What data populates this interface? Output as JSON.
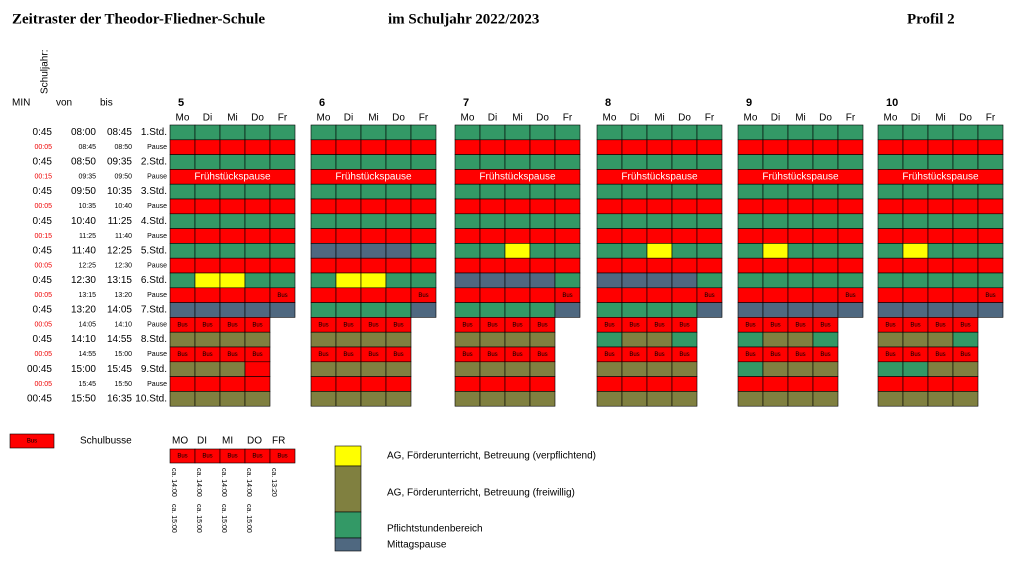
{
  "header": {
    "title": "Zeitraster der Theodor-Fliedner-Schule",
    "year": "im Schuljahr 2022/2023",
    "profile": "Profil 2",
    "schuljahr": "Schuljahr:",
    "min": "MIN",
    "from": "von",
    "to": "bis"
  },
  "days": [
    "Mo",
    "Di",
    "Mi",
    "Do",
    "Fr"
  ],
  "palette": {
    "g": "#339966",
    "r": "#ff0000",
    "y": "#ffff00",
    "o": "#808040",
    "m": "#4f6880"
  },
  "times": [
    [
      "0:45",
      "08:00",
      "08:45",
      "1.Std."
    ],
    [
      "00:05",
      "08:45",
      "08:50",
      "Pause"
    ],
    [
      "0:45",
      "08:50",
      "09:35",
      "2.Std."
    ],
    [
      "00:15",
      "09:35",
      "09:50",
      "Pause"
    ],
    [
      "0:45",
      "09:50",
      "10:35",
      "3.Std."
    ],
    [
      "00:05",
      "10:35",
      "10:40",
      "Pause"
    ],
    [
      "0:45",
      "10:40",
      "11:25",
      "4.Std."
    ],
    [
      "00:15",
      "11:25",
      "11:40",
      "Pause"
    ],
    [
      "0:45",
      "11:40",
      "12:25",
      "5.Std."
    ],
    [
      "00:05",
      "12:25",
      "12:30",
      "Pause"
    ],
    [
      "0:45",
      "12:30",
      "13:15",
      "6.Std."
    ],
    [
      "00:05",
      "13:15",
      "13:20",
      "Pause"
    ],
    [
      "0:45",
      "13:20",
      "14:05",
      "7.Std."
    ],
    [
      "00:05",
      "14:05",
      "14:10",
      "Pause"
    ],
    [
      "0:45",
      "14:10",
      "14:55",
      "8.Std."
    ],
    [
      "00:05",
      "14:55",
      "15:00",
      "Pause"
    ],
    [
      "00:45",
      "15:00",
      "15:45",
      "9.Std."
    ],
    [
      "00:05",
      "15:45",
      "15:50",
      "Pause"
    ],
    [
      "00:45",
      "15:50",
      "16:35",
      "10.Std."
    ]
  ],
  "grades": [
    {
      "name": "5",
      "rows": [
        [
          "g",
          "g",
          "g",
          "g",
          "g"
        ],
        [
          "r",
          "r",
          "r",
          "r",
          "r"
        ],
        [
          "g",
          "g",
          "g",
          "g",
          "g"
        ],
        "Frühstückspause",
        [
          "g",
          "g",
          "g",
          "g",
          "g"
        ],
        [
          "r",
          "r",
          "r",
          "r",
          "r"
        ],
        [
          "g",
          "g",
          "g",
          "g",
          "g"
        ],
        [
          "r",
          "r",
          "r",
          "r",
          "r"
        ],
        [
          "g",
          "g",
          "g",
          "g",
          "g"
        ],
        [
          "r",
          "r",
          "r",
          "r",
          "r"
        ],
        [
          "g",
          "y",
          "y",
          "g",
          "g"
        ],
        [
          "r",
          "r",
          "r",
          "r",
          "Bus"
        ],
        [
          "m",
          "m",
          "m",
          "m",
          "m"
        ],
        [
          "Bus",
          "Bus",
          "Bus",
          "Bus",
          null
        ],
        [
          "o",
          "o",
          "o",
          "o",
          null
        ],
        [
          "Bus",
          "Bus",
          "Bus",
          "Bus",
          null
        ],
        [
          "o",
          "o",
          "o",
          "r",
          null
        ],
        [
          "r",
          "r",
          "r",
          "r",
          null
        ],
        [
          "o",
          "o",
          "o",
          "o",
          null
        ]
      ]
    },
    {
      "name": "6",
      "rows": [
        [
          "g",
          "g",
          "g",
          "g",
          "g"
        ],
        [
          "r",
          "r",
          "r",
          "r",
          "r"
        ],
        [
          "g",
          "g",
          "g",
          "g",
          "g"
        ],
        "Frühstückspause",
        [
          "g",
          "g",
          "g",
          "g",
          "g"
        ],
        [
          "r",
          "r",
          "r",
          "r",
          "r"
        ],
        [
          "g",
          "g",
          "g",
          "g",
          "g"
        ],
        [
          "r",
          "r",
          "r",
          "r",
          "r"
        ],
        [
          "m",
          "m",
          "m",
          "m",
          "g"
        ],
        [
          "r",
          "r",
          "r",
          "r",
          "r"
        ],
        [
          "g",
          "y",
          "y",
          "g",
          "g"
        ],
        [
          "r",
          "r",
          "r",
          "r",
          "Bus"
        ],
        [
          "g",
          "g",
          "g",
          "g",
          "m"
        ],
        [
          "Bus",
          "Bus",
          "Bus",
          "Bus",
          null
        ],
        [
          "o",
          "o",
          "o",
          "o",
          null
        ],
        [
          "Bus",
          "Bus",
          "Bus",
          "Bus",
          null
        ],
        [
          "o",
          "o",
          "o",
          "o",
          null
        ],
        [
          "r",
          "r",
          "r",
          "r",
          null
        ],
        [
          "o",
          "o",
          "o",
          "o",
          null
        ]
      ]
    },
    {
      "name": "7",
      "rows": [
        [
          "g",
          "g",
          "g",
          "g",
          "g"
        ],
        [
          "r",
          "r",
          "r",
          "r",
          "r"
        ],
        [
          "g",
          "g",
          "g",
          "g",
          "g"
        ],
        "Frühstückspause",
        [
          "g",
          "g",
          "g",
          "g",
          "g"
        ],
        [
          "r",
          "r",
          "r",
          "r",
          "r"
        ],
        [
          "g",
          "g",
          "g",
          "g",
          "g"
        ],
        [
          "r",
          "r",
          "r",
          "r",
          "r"
        ],
        [
          "g",
          "g",
          "y",
          "g",
          "g"
        ],
        [
          "r",
          "r",
          "r",
          "r",
          "r"
        ],
        [
          "m",
          "m",
          "m",
          "m",
          "g"
        ],
        [
          "r",
          "r",
          "r",
          "r",
          "Bus"
        ],
        [
          "g",
          "g",
          "g",
          "g",
          "m"
        ],
        [
          "Bus",
          "Bus",
          "Bus",
          "Bus",
          null
        ],
        [
          "o",
          "o",
          "o",
          "o",
          null
        ],
        [
          "Bus",
          "Bus",
          "Bus",
          "Bus",
          null
        ],
        [
          "o",
          "o",
          "o",
          "o",
          null
        ],
        [
          "r",
          "r",
          "r",
          "r",
          null
        ],
        [
          "o",
          "o",
          "o",
          "o",
          null
        ]
      ]
    },
    {
      "name": "8",
      "rows": [
        [
          "g",
          "g",
          "g",
          "g",
          "g"
        ],
        [
          "r",
          "r",
          "r",
          "r",
          "r"
        ],
        [
          "g",
          "g",
          "g",
          "g",
          "g"
        ],
        "Frühstückspause",
        [
          "g",
          "g",
          "g",
          "g",
          "g"
        ],
        [
          "r",
          "r",
          "r",
          "r",
          "r"
        ],
        [
          "g",
          "g",
          "g",
          "g",
          "g"
        ],
        [
          "r",
          "r",
          "r",
          "r",
          "r"
        ],
        [
          "g",
          "g",
          "y",
          "g",
          "g"
        ],
        [
          "r",
          "r",
          "r",
          "r",
          "r"
        ],
        [
          "m",
          "m",
          "m",
          "m",
          "g"
        ],
        [
          "r",
          "r",
          "r",
          "r",
          "Bus"
        ],
        [
          "g",
          "g",
          "g",
          "g",
          "m"
        ],
        [
          "Bus",
          "Bus",
          "Bus",
          "Bus",
          null
        ],
        [
          "g",
          "o",
          "o",
          "g",
          null
        ],
        [
          "Bus",
          "Bus",
          "Bus",
          "Bus",
          null
        ],
        [
          "o",
          "o",
          "o",
          "o",
          null
        ],
        [
          "r",
          "r",
          "r",
          "r",
          null
        ],
        [
          "o",
          "o",
          "o",
          "o",
          null
        ]
      ]
    },
    {
      "name": "9",
      "rows": [
        [
          "g",
          "g",
          "g",
          "g",
          "g"
        ],
        [
          "r",
          "r",
          "r",
          "r",
          "r"
        ],
        [
          "g",
          "g",
          "g",
          "g",
          "g"
        ],
        "Frühstückspause",
        [
          "g",
          "g",
          "g",
          "g",
          "g"
        ],
        [
          "r",
          "r",
          "r",
          "r",
          "r"
        ],
        [
          "g",
          "g",
          "g",
          "g",
          "g"
        ],
        [
          "r",
          "r",
          "r",
          "r",
          "r"
        ],
        [
          "g",
          "y",
          "g",
          "g",
          "g"
        ],
        [
          "r",
          "r",
          "r",
          "r",
          "r"
        ],
        [
          "g",
          "g",
          "g",
          "g",
          "g"
        ],
        [
          "r",
          "r",
          "r",
          "r",
          "Bus"
        ],
        [
          "m",
          "m",
          "m",
          "m",
          "m"
        ],
        [
          "Bus",
          "Bus",
          "Bus",
          "Bus",
          null
        ],
        [
          "g",
          "o",
          "o",
          "g",
          null
        ],
        [
          "Bus",
          "Bus",
          "Bus",
          "Bus",
          null
        ],
        [
          "g",
          "o",
          "o",
          "o",
          null
        ],
        [
          "r",
          "r",
          "r",
          "r",
          null
        ],
        [
          "o",
          "o",
          "o",
          "o",
          null
        ]
      ]
    },
    {
      "name": "10",
      "rows": [
        [
          "g",
          "g",
          "g",
          "g",
          "g"
        ],
        [
          "r",
          "r",
          "r",
          "r",
          "r"
        ],
        [
          "g",
          "g",
          "g",
          "g",
          "g"
        ],
        "Frühstückspause",
        [
          "g",
          "g",
          "g",
          "g",
          "g"
        ],
        [
          "r",
          "r",
          "r",
          "r",
          "r"
        ],
        [
          "g",
          "g",
          "g",
          "g",
          "g"
        ],
        [
          "r",
          "r",
          "r",
          "r",
          "r"
        ],
        [
          "g",
          "y",
          "g",
          "g",
          "g"
        ],
        [
          "r",
          "r",
          "r",
          "r",
          "r"
        ],
        [
          "g",
          "g",
          "g",
          "g",
          "g"
        ],
        [
          "r",
          "r",
          "r",
          "r",
          "Bus"
        ],
        [
          "m",
          "m",
          "m",
          "m",
          "m"
        ],
        [
          "Bus",
          "Bus",
          "Bus",
          "Bus",
          null
        ],
        [
          "o",
          "o",
          "o",
          "g",
          null
        ],
        [
          "Bus",
          "Bus",
          "Bus",
          "Bus",
          null
        ],
        [
          "g",
          "g",
          "o",
          "o",
          null
        ],
        [
          "r",
          "r",
          "r",
          "r",
          null
        ],
        [
          "o",
          "o",
          "o",
          "o",
          null
        ]
      ]
    }
  ],
  "legend": {
    "bus_label": "Bus",
    "bus_text": "Schulbusse",
    "days": [
      "MO",
      "DI",
      "MI",
      "DO",
      "FR"
    ],
    "bus_boxes": [
      "Bus",
      "Bus",
      "Bus",
      "Bus",
      "Bus"
    ],
    "times": [
      [
        "ca. 14:00",
        "ca. 15:00"
      ],
      [
        "ca. 14:00",
        "ca. 15:00"
      ],
      [
        "ca. 14:00",
        "ca. 15:00"
      ],
      [
        "ca. 14:00",
        "ca. 15:00"
      ],
      [
        "ca. 13:20"
      ]
    ],
    "items": [
      {
        "color": "y",
        "label": "AG, Förderunterricht, Betreuung (verpflichtend)"
      },
      {
        "color": "o",
        "label": "AG, Förderunterricht, Betreuung (freiwillig)"
      },
      {
        "color": "g",
        "label": "Pflichtstundenbereich"
      },
      {
        "color": "m",
        "label": "Mittagspause"
      }
    ]
  }
}
